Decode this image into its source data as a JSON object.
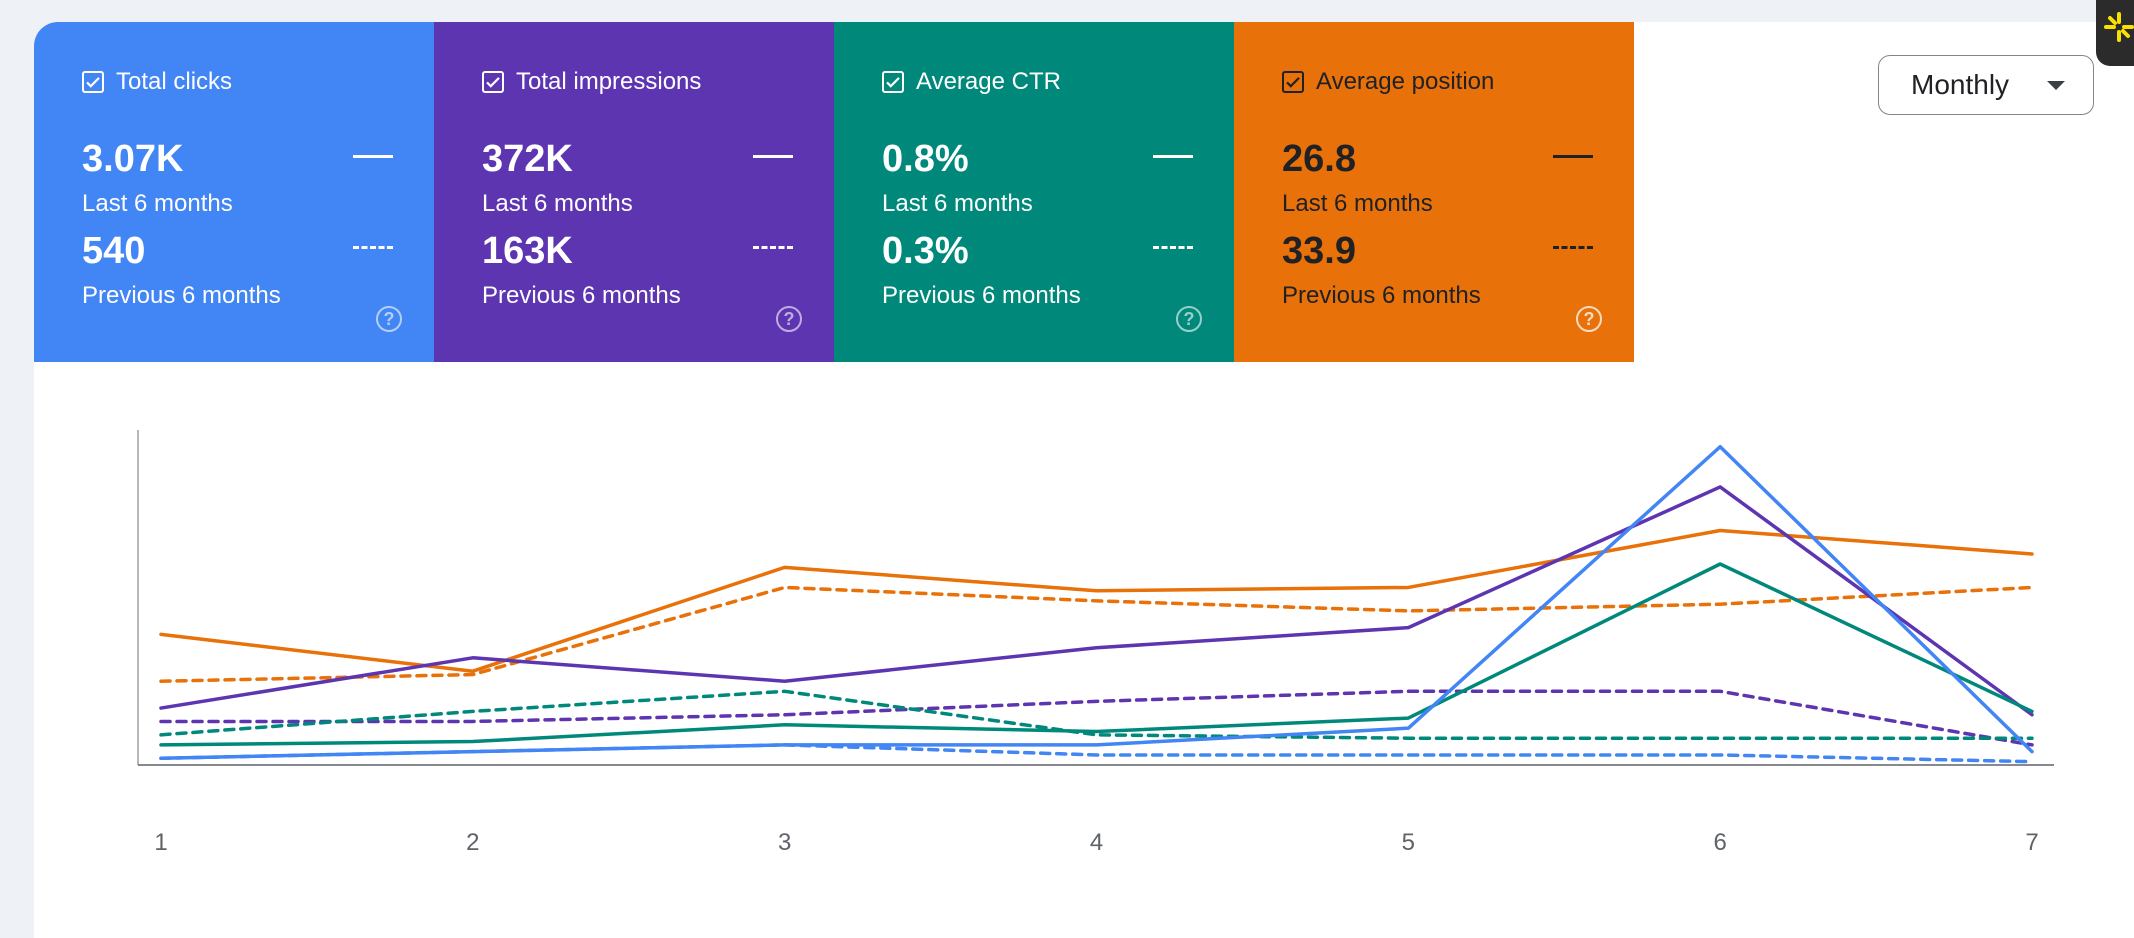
{
  "cards": [
    {
      "label": "Total clicks",
      "checked": true,
      "color": "#4285f4",
      "current_value": "3.07K",
      "current_period": "Last 6 months",
      "previous_value": "540",
      "previous_period": "Previous 6 months"
    },
    {
      "label": "Total impressions",
      "checked": true,
      "color": "#5e35b1",
      "current_value": "372K",
      "current_period": "Last 6 months",
      "previous_value": "163K",
      "previous_period": "Previous 6 months"
    },
    {
      "label": "Average CTR",
      "checked": true,
      "color": "#00897b",
      "current_value": "0.8%",
      "current_period": "Last 6 months",
      "previous_value": "0.3%",
      "previous_period": "Previous 6 months"
    },
    {
      "label": "Average position",
      "checked": true,
      "color": "#e8710a",
      "current_value": "26.8",
      "current_period": "Last 6 months",
      "previous_value": "33.9",
      "previous_period": "Previous 6 months"
    }
  ],
  "granularity": {
    "selected": "Monthly"
  },
  "chart_data": {
    "type": "line",
    "x": [
      1,
      2,
      3,
      4,
      5,
      6,
      7
    ],
    "ylim": [
      0,
      1
    ],
    "grid": false,
    "series": [
      {
        "name": "Average position",
        "style": "solid",
        "color": "#e8710a",
        "values": [
          0.39,
          0.28,
          0.59,
          0.52,
          0.53,
          0.7,
          0.63
        ]
      },
      {
        "name": "Average position",
        "style": "dashed",
        "color": "#e8710a",
        "values": [
          0.25,
          0.27,
          0.53,
          0.49,
          0.46,
          0.48,
          0.53
        ]
      },
      {
        "name": "Total impressions",
        "style": "solid",
        "color": "#5e35b1",
        "values": [
          0.17,
          0.32,
          0.25,
          0.35,
          0.41,
          0.83,
          0.15
        ]
      },
      {
        "name": "Total impressions",
        "style": "dashed",
        "color": "#5e35b1",
        "values": [
          0.13,
          0.13,
          0.15,
          0.19,
          0.22,
          0.22,
          0.06
        ]
      },
      {
        "name": "Average CTR",
        "style": "solid",
        "color": "#00897b",
        "values": [
          0.06,
          0.07,
          0.12,
          0.1,
          0.14,
          0.6,
          0.16
        ]
      },
      {
        "name": "Average CTR",
        "style": "dashed",
        "color": "#00897b",
        "values": [
          0.09,
          0.16,
          0.22,
          0.09,
          0.08,
          0.08,
          0.08
        ]
      },
      {
        "name": "Total clicks",
        "style": "solid",
        "color": "#4285f4",
        "values": [
          0.02,
          0.04,
          0.06,
          0.06,
          0.11,
          0.95,
          0.04
        ]
      },
      {
        "name": "Total clicks",
        "style": "dashed",
        "color": "#4285f4",
        "values": [
          0.02,
          0.04,
          0.06,
          0.03,
          0.03,
          0.03,
          0.01
        ]
      }
    ]
  }
}
